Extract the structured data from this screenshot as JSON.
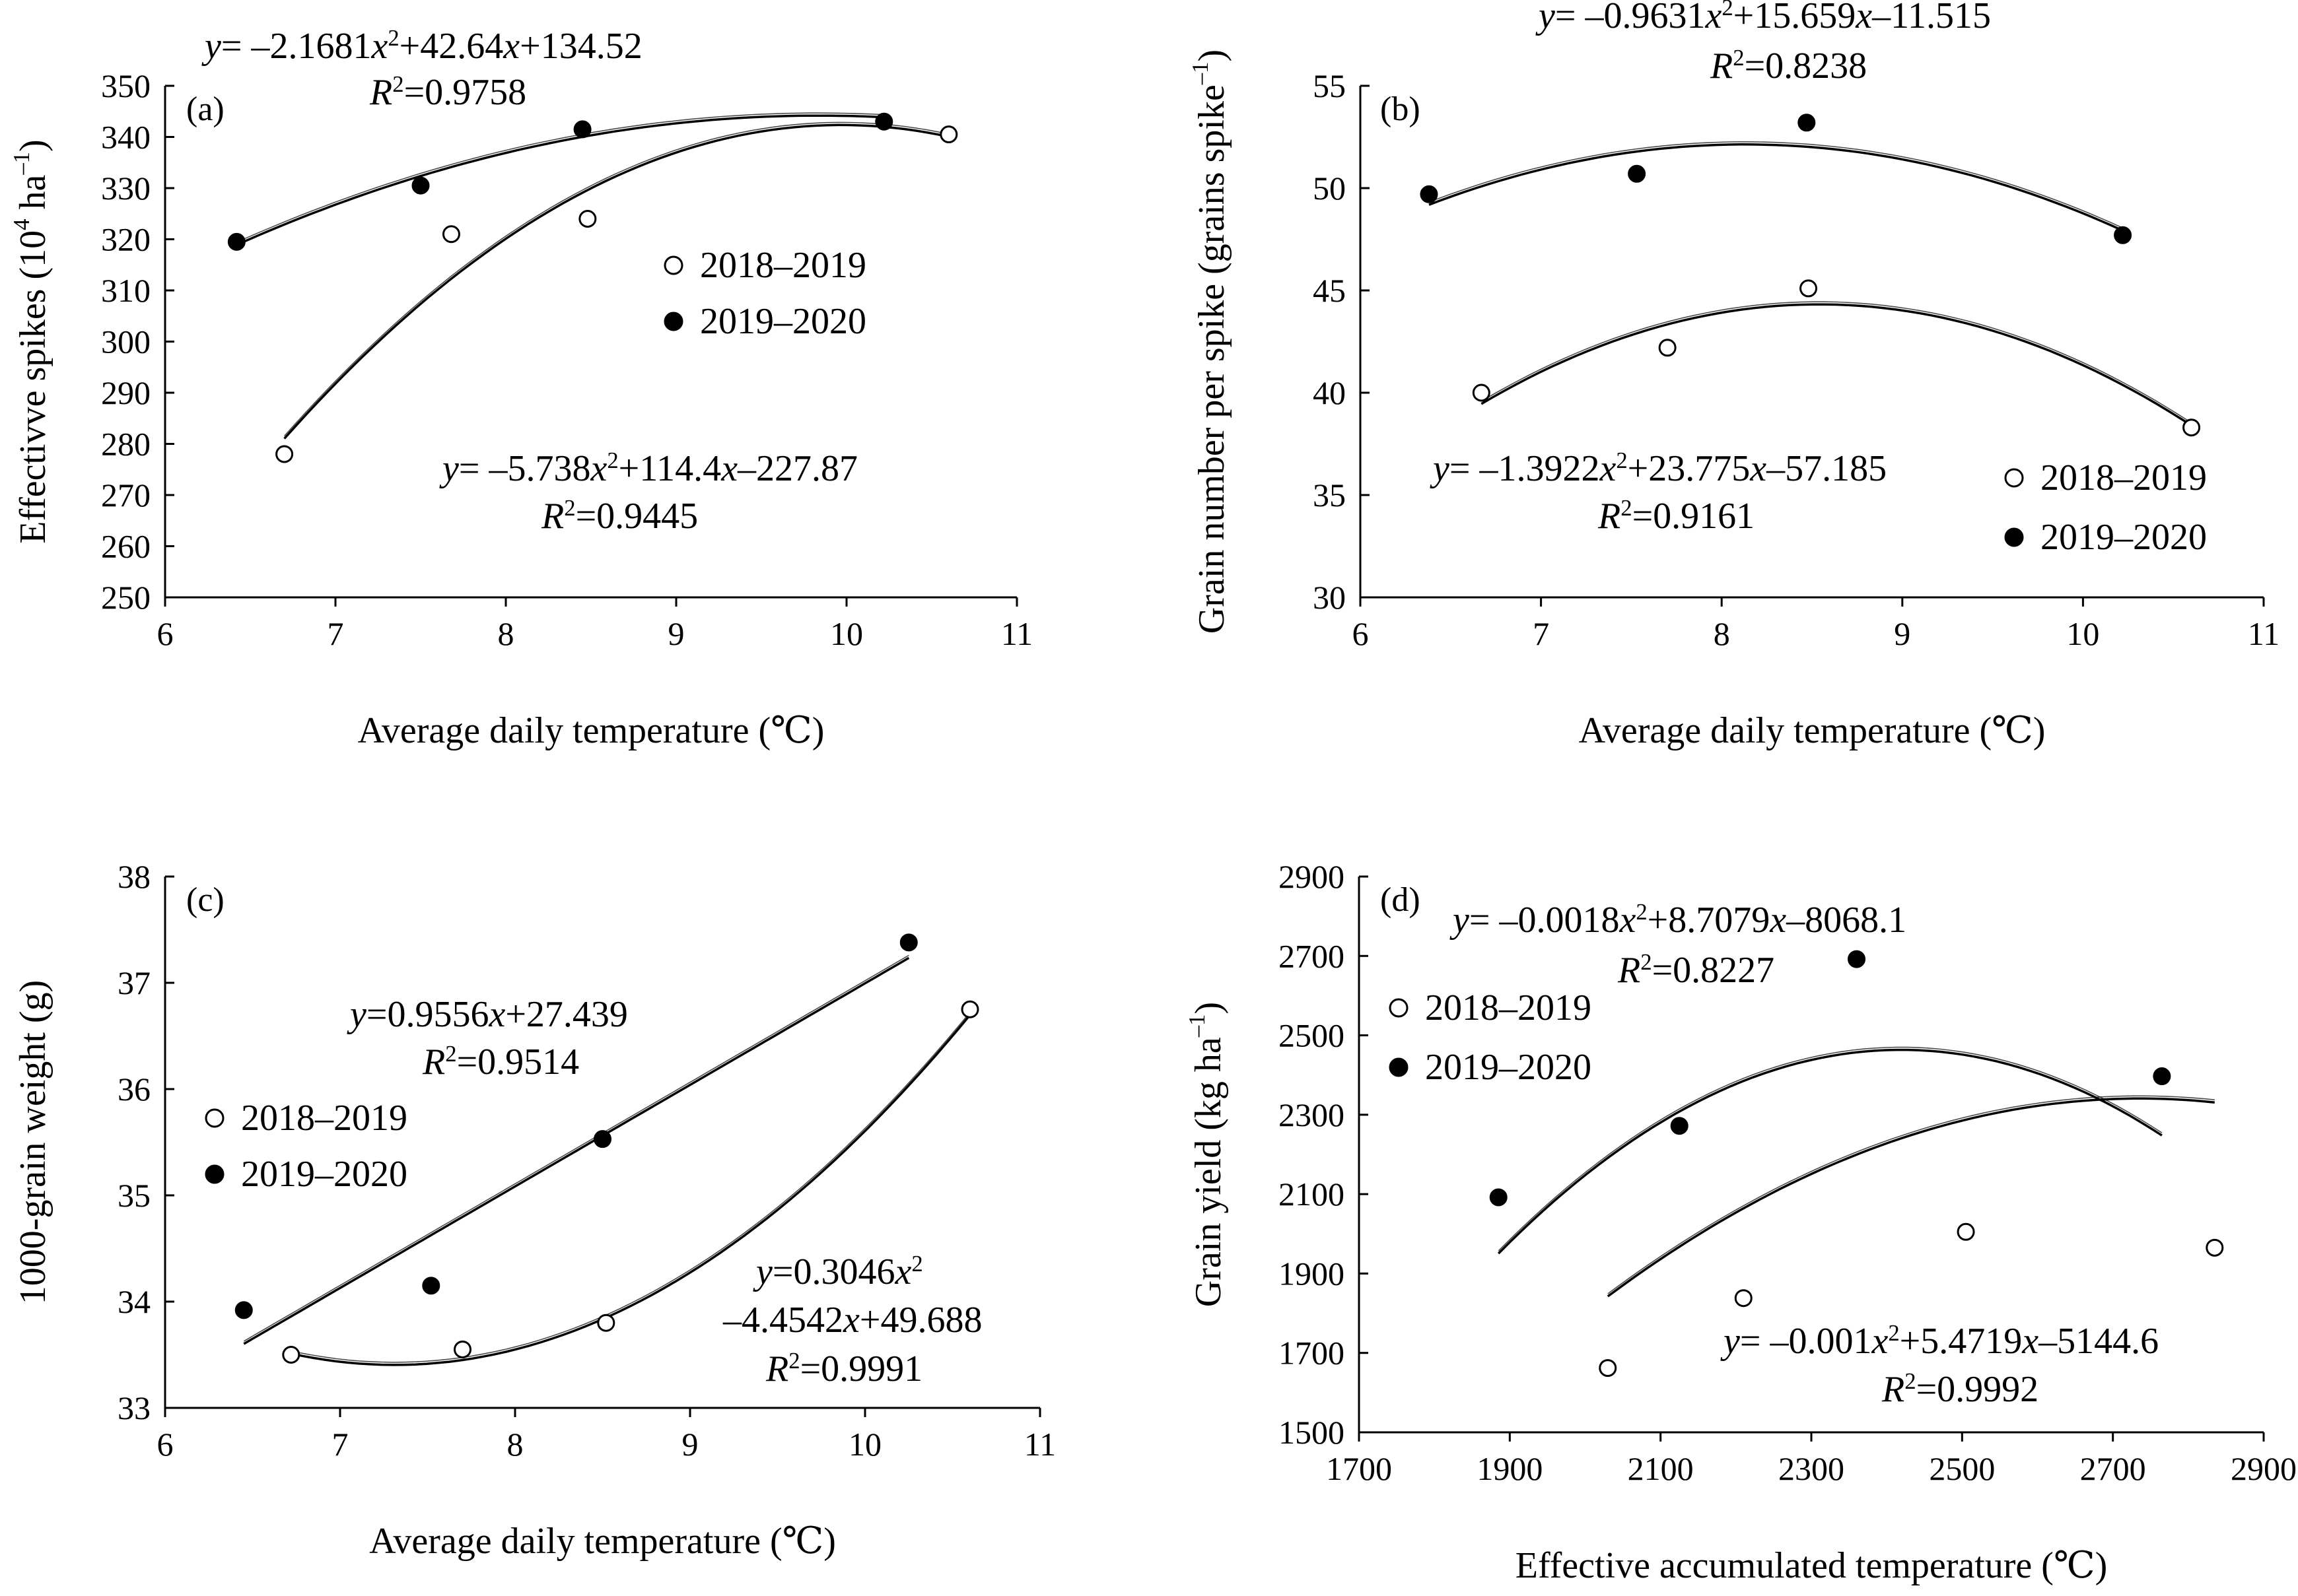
{
  "chart_data": [
    {
      "type": "scatter",
      "panel": "(a)",
      "xlabel": "Average daily temperature (℃)",
      "ylabel": "Effectivve spikes (10⁴ ha⁻¹)",
      "xlim": [
        6,
        11
      ],
      "ylim": [
        250,
        350
      ],
      "xticks": [
        "6",
        "7",
        "8",
        "9",
        "10",
        "11"
      ],
      "yticks": [
        "250",
        "260",
        "270",
        "280",
        "290",
        "300",
        "310",
        "320",
        "330",
        "340",
        "350"
      ],
      "series": [
        {
          "name": "2018–2019",
          "marker": "open",
          "x": [
            6.7,
            7.68,
            8.48,
            10.6
          ],
          "y": [
            278,
            321,
            324,
            340.5
          ],
          "fit": {
            "equation": "y= –5.738x²+114.4x–227.87",
            "r2": "R²=0.9445",
            "coeffs": [
              -5.738,
              114.4,
              -227.87
            ],
            "xrange": [
              6.7,
              10.6
            ]
          }
        },
        {
          "name": "2019–2020",
          "marker": "filled",
          "x": [
            6.42,
            7.5,
            8.45,
            10.22
          ],
          "y": [
            319.5,
            330.5,
            341.5,
            343
          ],
          "fit": {
            "equation": "y= –2.1681x²+42.64x+134.52",
            "r2": "R²=0.9758",
            "coeffs": [
              -2.1681,
              42.64,
              134.52
            ],
            "xrange": [
              6.42,
              10.22
            ]
          }
        }
      ]
    },
    {
      "type": "scatter",
      "panel": "(b)",
      "xlabel": "Average daily temperature (℃)",
      "ylabel": "Grain number per spike (grains spike⁻¹)",
      "xlim": [
        6,
        11
      ],
      "ylim": [
        30,
        55
      ],
      "xticks": [
        "6",
        "7",
        "8",
        "9",
        "10",
        "11"
      ],
      "yticks": [
        "30",
        "35",
        "40",
        "45",
        "50",
        "55"
      ],
      "series": [
        {
          "name": "2018–2019",
          "marker": "open",
          "x": [
            6.67,
            7.7,
            8.48,
            10.6
          ],
          "y": [
            40.0,
            42.2,
            45.1,
            38.3
          ],
          "fit": {
            "equation": "y= –1.3922x²+23.775x–57.185",
            "r2": "R²=0.9161",
            "coeffs": [
              -1.3922,
              23.775,
              -57.185
            ],
            "xrange": [
              6.67,
              10.6
            ]
          }
        },
        {
          "name": "2019–2020",
          "marker": "filled",
          "x": [
            6.38,
            7.53,
            8.47,
            10.22
          ],
          "y": [
            49.7,
            50.7,
            53.2,
            47.7
          ],
          "fit": {
            "equation": "y= –0.9631x²+15.659x–11.515",
            "r2": "R²=0.8238",
            "coeffs": [
              -0.9631,
              15.659,
              -11.515
            ],
            "xrange": [
              6.38,
              10.22
            ]
          }
        }
      ]
    },
    {
      "type": "scatter",
      "panel": "(c)",
      "xlabel": "Average daily temperature (℃)",
      "ylabel": "1000-grain weight (g)",
      "xlim": [
        6,
        11
      ],
      "ylim": [
        33,
        38
      ],
      "xticks": [
        "6",
        "7",
        "8",
        "9",
        "10",
        "11"
      ],
      "yticks": [
        "33",
        "34",
        "35",
        "36",
        "37",
        "38"
      ],
      "series": [
        {
          "name": "2018–2019",
          "marker": "open",
          "x": [
            6.72,
            7.7,
            8.52,
            10.6
          ],
          "y": [
            33.5,
            33.55,
            33.8,
            36.75
          ],
          "fit": {
            "equation": "y=0.3046x²",
            "equation_line2": "–4.4542x+49.688",
            "r2": "R²=0.9991",
            "coeffs": [
              0.3046,
              -4.4542,
              49.688
            ],
            "xrange": [
              6.72,
              10.6
            ]
          }
        },
        {
          "name": "2019–2020",
          "marker": "filled",
          "x": [
            6.45,
            7.52,
            8.5,
            10.25
          ],
          "y": [
            33.92,
            34.15,
            35.53,
            37.38
          ],
          "fit": {
            "equation": "y=0.9556x+27.439",
            "r2": "R²=0.9514",
            "coeffs": [
              0,
              0.9556,
              27.439
            ],
            "xrange": [
              6.45,
              10.25
            ]
          }
        }
      ]
    },
    {
      "type": "scatter",
      "panel": "(d)",
      "xlabel": "Effective accumulated temperature (℃)",
      "ylabel": "Grain yield (kg ha⁻¹)",
      "xlim": [
        1700,
        2900
      ],
      "ylim": [
        1500,
        2900
      ],
      "xticks": [
        "1700",
        "1900",
        "2100",
        "2300",
        "2500",
        "2700",
        "2900"
      ],
      "yticks": [
        "1500",
        "1700",
        "1900",
        "2100",
        "2300",
        "2500",
        "2700",
        "2900"
      ],
      "series": [
        {
          "name": "2018–2019",
          "marker": "open",
          "x": [
            2030,
            2210,
            2505,
            2835
          ],
          "y": [
            1662,
            1838,
            2005,
            1965
          ],
          "fit": {
            "equation": "y= –0.001x²+5.4719x–5144.6",
            "r2": "R²=0.9992",
            "coeffs": [
              -0.001,
              5.4719,
              -5144.6
            ],
            "xrange": [
              2030,
              2835
            ]
          }
        },
        {
          "name": "2019–2020",
          "marker": "filled",
          "x": [
            1885,
            2125,
            2360,
            2765
          ],
          "y": [
            2092,
            2272,
            2692,
            2397
          ],
          "fit": {
            "equation": "y= –0.0018x²+8.7079x–8068.1",
            "r2": "R²=0.8227",
            "coeffs": [
              -0.0018,
              8.7079,
              -8068.1
            ],
            "xrange": [
              1885,
              2765
            ]
          }
        }
      ]
    }
  ]
}
